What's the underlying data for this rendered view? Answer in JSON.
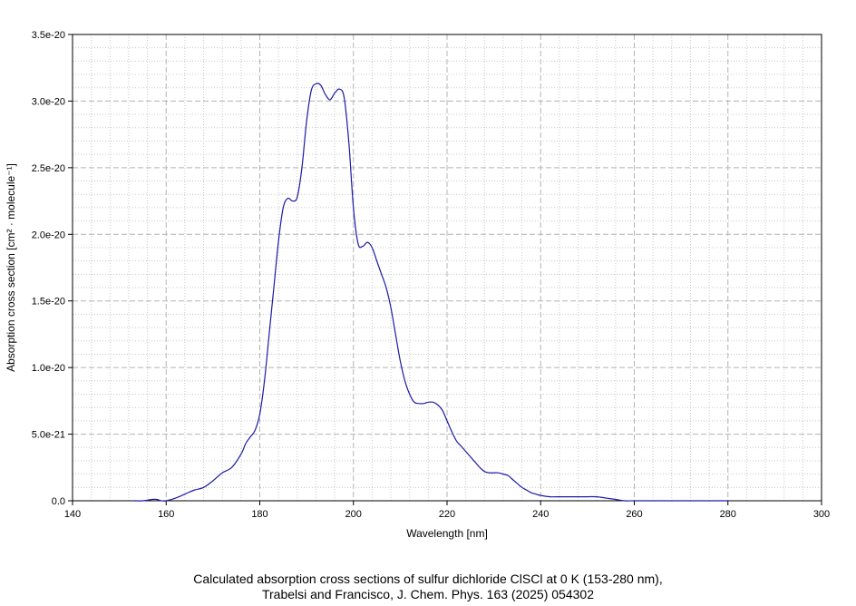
{
  "chart_data": {
    "type": "line",
    "xlabel": "Wavelength [nm]",
    "ylabel": "Absorption cross section [cm² · molecule⁻¹]",
    "xlim": [
      140,
      300
    ],
    "ylim": [
      0,
      3.5e-20
    ],
    "x_ticks": [
      140,
      160,
      180,
      200,
      220,
      240,
      260,
      280,
      300
    ],
    "x_tick_labels": [
      "140",
      "160",
      "180",
      "200",
      "220",
      "240",
      "260",
      "280",
      "300"
    ],
    "y_ticks": [
      0,
      5e-21,
      1e-20,
      1.5e-20,
      2e-20,
      2.5e-20,
      3e-20,
      3.5e-20
    ],
    "y_tick_labels": [
      "0.0",
      "5.0e-21",
      "1.0e-20",
      "1.5e-20",
      "2.0e-20",
      "2.5e-20",
      "3.0e-20",
      "3.5e-20"
    ],
    "grid": true,
    "series_color": "#1a1aa6",
    "series": [
      {
        "x": [
          153,
          155,
          157,
          158,
          159,
          160,
          162,
          164,
          166,
          168,
          170,
          172,
          174,
          176,
          177,
          178,
          179,
          180,
          181,
          182,
          183,
          184,
          185,
          186,
          187,
          188,
          189,
          190,
          191,
          192,
          193,
          194,
          195,
          196,
          197,
          198,
          199,
          200,
          201,
          202,
          203,
          204,
          205,
          206,
          207,
          208,
          209,
          210,
          211,
          212,
          213,
          214,
          215,
          216,
          217,
          218,
          219,
          220,
          221,
          222,
          223,
          224,
          225,
          226,
          227,
          228,
          229,
          230,
          231,
          232,
          233,
          234,
          235,
          236,
          237,
          238,
          239,
          240,
          242,
          244,
          246,
          248,
          250,
          252,
          254,
          256,
          258,
          260,
          265,
          270,
          275,
          280
        ],
        "y": [
          0,
          0,
          1e-22,
          1e-22,
          0,
          0,
          2e-22,
          5e-22,
          8e-22,
          1e-21,
          1.5e-21,
          2.1e-21,
          2.5e-21,
          3.5e-21,
          4.3e-21,
          4.8e-21,
          5.3e-21,
          6.5e-21,
          9e-21,
          1.25e-20,
          1.6e-20,
          1.95e-20,
          2.2e-20,
          2.27e-20,
          2.25e-20,
          2.28e-20,
          2.5e-20,
          2.85e-20,
          3.08e-20,
          3.13e-20,
          3.12e-20,
          3.05e-20,
          3.01e-20,
          3.06e-20,
          3.09e-20,
          3.03e-20,
          2.7e-20,
          2.2e-20,
          1.93e-20,
          1.91e-20,
          1.94e-20,
          1.9e-20,
          1.8e-20,
          1.7e-20,
          1.6e-20,
          1.45e-20,
          1.25e-20,
          1.05e-20,
          9e-21,
          8e-21,
          7.4e-21,
          7.3e-21,
          7.3e-21,
          7.4e-21,
          7.4e-21,
          7.2e-21,
          6.8e-21,
          6e-21,
          5.2e-21,
          4.5e-21,
          4.1e-21,
          3.7e-21,
          3.3e-21,
          2.9e-21,
          2.5e-21,
          2.2e-21,
          2.1e-21,
          2.1e-21,
          2.1e-21,
          2e-21,
          1.9e-21,
          1.6e-21,
          1.3e-21,
          1e-21,
          8e-22,
          6e-22,
          5e-22,
          4e-22,
          3e-22,
          3e-22,
          3e-22,
          3e-22,
          3e-22,
          3e-22,
          2e-22,
          1e-22,
          0,
          0,
          0,
          0,
          0,
          0
        ]
      }
    ]
  },
  "caption": {
    "line1": "Calculated absorption cross sections of sulfur dichloride ClSCl at 0 K (153-280 nm),",
    "line2": "Trabelsi and Francisco, J. Chem. Phys. 163 (2025) 054302"
  }
}
